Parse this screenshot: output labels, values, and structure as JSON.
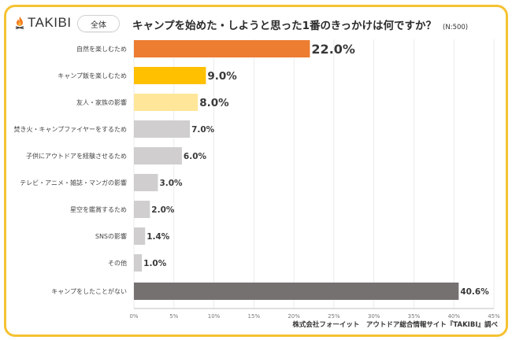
{
  "brand": {
    "logo_text": "TAKIBI",
    "logo_icon": "campfire-icon"
  },
  "badge": {
    "label": "全体"
  },
  "header": {
    "title": "キャンプを始めた・しようと思った1番のきっかけは何ですか？",
    "sample_size": "(N:500)"
  },
  "source": "株式会社フォーイット　アウトドア総合情報サイト『TAKIBI』調べ",
  "colors": {
    "frame": "#f5c232",
    "highlight": "#ed7d31",
    "second": "#ffc000",
    "third": "#ffe699",
    "default": "#d0cece",
    "none": "#767171"
  },
  "chart_data": {
    "type": "bar",
    "orientation": "horizontal",
    "title": "キャンプを始めた・しようと思った1番のきっかけは何ですか？",
    "subtitle": "(N:500)",
    "xlabel": "",
    "ylabel": "",
    "xlim": [
      0,
      45
    ],
    "x_ticks": [
      0,
      5,
      10,
      15,
      20,
      25,
      30,
      35,
      40,
      45
    ],
    "x_tick_labels": [
      "0%",
      "5%",
      "10%",
      "15%",
      "20%",
      "25%",
      "30%",
      "35%",
      "40%",
      "45%"
    ],
    "grid": true,
    "legend": "none",
    "categories": [
      "自然を楽しむため",
      "キャンプ飯を楽しむため",
      "友人・家族の影響",
      "焚き火・キャンプファイヤーをするため",
      "子供にアウトドアを経験させるため",
      "テレビ・アニメ・雑誌・マンガの影響",
      "星空を鑑賞するため",
      "SNSの影響",
      "その他",
      "キャンプをしたことがない"
    ],
    "values": [
      22.0,
      9.0,
      8.0,
      7.0,
      6.0,
      3.0,
      2.0,
      1.4,
      1.0,
      40.6
    ],
    "value_labels": [
      "22.0%",
      "9.0%",
      "8.0%",
      "7.0%",
      "6.0%",
      "3.0%",
      "2.0%",
      "1.4%",
      "1.0%",
      "40.6%"
    ],
    "bar_colors": [
      "#ed7d31",
      "#ffc000",
      "#ffe699",
      "#d0cece",
      "#d0cece",
      "#d0cece",
      "#d0cece",
      "#d0cece",
      "#d0cece",
      "#767171"
    ],
    "label_colors": [
      "#ed7d31",
      "#3a3a3a",
      "#3a3a3a",
      "#3a3a3a",
      "#3a3a3a",
      "#3a3a3a",
      "#3a3a3a",
      "#3a3a3a",
      "#3a3a3a",
      "#3a3a3a"
    ]
  }
}
